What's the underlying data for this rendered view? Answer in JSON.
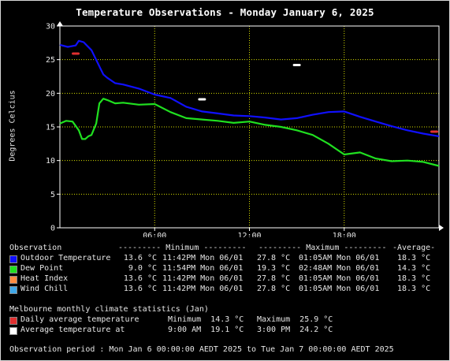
{
  "title": "Temperature Observations - Monday January 6, 2025",
  "colors": {
    "background": "#000000",
    "grid": "#d8e000",
    "outdoor_temperature": "#1010ff",
    "dew_point": "#20e020",
    "heat_index": "#ff8c40",
    "wind_chill": "#40a8e8",
    "daily_average": "#e03030",
    "average_temp_at": "#ffffff"
  },
  "chart_data": {
    "type": "line",
    "title": "Temperature Observations - Monday January 6, 2025",
    "ylabel": "Degrees Celcius",
    "xlabel": "",
    "ylim": [
      0,
      30
    ],
    "xlim_hours": [
      0,
      24
    ],
    "grid": true,
    "y_ticks": [
      "0",
      "5",
      "10",
      "15",
      "20",
      "25",
      "30"
    ],
    "x_ticks": [
      {
        "hour": 6,
        "label": "06:00"
      },
      {
        "hour": 12,
        "label": "12:00"
      },
      {
        "hour": 18,
        "label": "18:00"
      }
    ],
    "series": [
      {
        "name": "Outdoor Temperature",
        "color": "#1010ff",
        "x": [
          0,
          0.5,
          1,
          1.2,
          1.5,
          2,
          2.5,
          2.75,
          3,
          3.5,
          4,
          5,
          6,
          7,
          8,
          9,
          10,
          11,
          12,
          13,
          14,
          15,
          16,
          17,
          18,
          19,
          20,
          21,
          22,
          23,
          24
        ],
        "y": [
          27.2,
          26.9,
          27.1,
          27.8,
          27.6,
          26.4,
          24.0,
          22.8,
          22.3,
          21.5,
          21.3,
          20.7,
          19.8,
          19.3,
          18.0,
          17.3,
          17.0,
          16.7,
          16.6,
          16.4,
          16.1,
          16.3,
          16.8,
          17.2,
          17.3,
          16.5,
          15.8,
          15.1,
          14.5,
          14.0,
          13.6
        ]
      },
      {
        "name": "Dew Point",
        "color": "#20e020",
        "x": [
          0,
          0.4,
          0.8,
          1.2,
          1.4,
          1.6,
          1.8,
          2.0,
          2.3,
          2.5,
          2.75,
          3,
          3.5,
          4,
          5,
          6,
          7,
          8,
          9,
          10,
          11,
          12,
          13,
          14,
          15,
          16,
          17,
          18,
          19,
          20,
          21,
          22,
          23,
          24
        ],
        "y": [
          15.5,
          15.9,
          15.8,
          14.5,
          13.2,
          13.2,
          13.6,
          13.8,
          15.5,
          18.5,
          19.2,
          19.0,
          18.5,
          18.6,
          18.3,
          18.4,
          17.2,
          16.3,
          16.1,
          15.9,
          15.6,
          15.8,
          15.3,
          15.0,
          14.5,
          13.8,
          12.5,
          10.9,
          11.2,
          10.3,
          9.9,
          10.0,
          9.8,
          9.2
        ]
      }
    ],
    "markers": [
      {
        "name": "Daily average temperature",
        "color": "#e03030",
        "hour": 1,
        "value": 25.9
      },
      {
        "name": "Daily average temperature",
        "color": "#e03030",
        "hour": 24,
        "value": 14.3
      },
      {
        "name": "Average temperature at",
        "color": "#ffffff",
        "hour": 9,
        "value": 19.1
      },
      {
        "name": "Average temperature at",
        "color": "#ffffff",
        "hour": 15,
        "value": 24.2
      }
    ]
  },
  "stats": {
    "header": {
      "observation": "Observation",
      "minimum": "--------- Minimum ---------",
      "maximum": "--------- Maximum ---------",
      "average": "-Average-"
    },
    "rows": [
      {
        "color": "#1010ff",
        "label": "Outdoor Temperature",
        "min_val": "13.6 °C",
        "min_time": "11:42PM Mon 06/01",
        "max_val": "27.8 °C",
        "max_time": "01:05AM Mon 06/01",
        "avg": "18.3 °C"
      },
      {
        "color": "#20e020",
        "label": "Dew Point",
        "min_val": "9.0 °C",
        "min_time": "11:54PM Mon 06/01",
        "max_val": "19.3 °C",
        "max_time": "02:48AM Mon 06/01",
        "avg": "14.3 °C"
      },
      {
        "color": "#ff8c40",
        "label": "Heat Index",
        "min_val": "13.6 °C",
        "min_time": "11:42PM Mon 06/01",
        "max_val": "27.8 °C",
        "max_time": "01:05AM Mon 06/01",
        "avg": "18.3 °C"
      },
      {
        "color": "#40a8e8",
        "label": "Wind Chill",
        "min_val": "13.6 °C",
        "min_time": "11:42PM Mon 06/01",
        "max_val": "27.8 °C",
        "max_time": "01:05AM Mon 06/01",
        "avg": "18.3 °C"
      }
    ]
  },
  "climate": {
    "heading": "Melbourne monthly climate statistics (Jan)",
    "daily_label": "Daily average temperature",
    "daily_min": "Minimum  14.3 °C",
    "daily_max": "Maximum  25.9 °C",
    "at_label": "Average temperature at",
    "at_first": "9:00 AM  19.1 °C",
    "at_second": "3:00 PM  24.2 °C"
  },
  "period": "Observation period : Mon Jan 6 00:00:00 AEDT 2025 to Tue Jan 7 00:00:00 AEDT 2025"
}
